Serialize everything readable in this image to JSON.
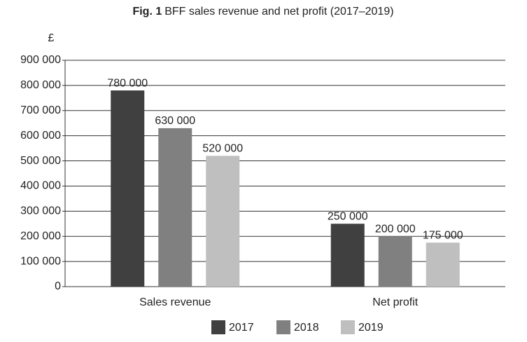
{
  "chart_data": {
    "type": "bar",
    "title_prefix": "Fig. 1",
    "title": "BFF sales revenue and net profit (2017–2019)",
    "y_label": "£",
    "categories": [
      "Sales revenue",
      "Net profit"
    ],
    "series": [
      {
        "name": "2017",
        "color": "#404040",
        "values": [
          780000,
          250000
        ],
        "value_labels": [
          "780 000",
          "250 000"
        ]
      },
      {
        "name": "2018",
        "color": "#808080",
        "values": [
          630000,
          200000
        ],
        "value_labels": [
          "630 000",
          "200 000"
        ]
      },
      {
        "name": "2019",
        "color": "#bfbfbf",
        "values": [
          520000,
          175000
        ],
        "value_labels": [
          "520 000",
          "175 000"
        ]
      }
    ],
    "ylim": [
      0,
      900000
    ],
    "yticks": [
      0,
      {
        "value": 100000,
        "label": "100 000"
      },
      {
        "value": 200000,
        "label": "200 000"
      },
      {
        "value": 300000,
        "label": "300 000"
      },
      {
        "value": 400000,
        "label": "400 000"
      },
      {
        "value": 500000,
        "label": "500 000"
      },
      {
        "value": 600000,
        "label": "600 000"
      },
      {
        "value": 700000,
        "label": "700 000"
      },
      {
        "value": 800000,
        "label": "800 000"
      },
      {
        "value": 900000,
        "label": "900 000"
      }
    ],
    "grid": true,
    "legend": "bottom"
  }
}
